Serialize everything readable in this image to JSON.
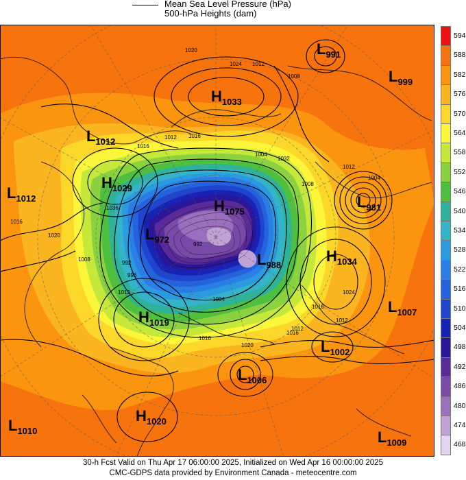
{
  "legend": {
    "line1": "Mean Sea Level Pressure (hPa)",
    "line2": "500-hPa Heights (dam)"
  },
  "footer": {
    "line1": "30-h Fcst Valid on Thu Apr 17 06:00:00 2025, Initialized on Wed Apr 16 00:00:00 2025",
    "line2": "CMC-GDPS data provided by Environment Canada - meteocentre.com"
  },
  "colorbar": {
    "levels": [
      "594",
      "588",
      "582",
      "576",
      "570",
      "564",
      "558",
      "552",
      "546",
      "540",
      "534",
      "528",
      "522",
      "516",
      "510",
      "504",
      "498",
      "492",
      "486",
      "480",
      "474",
      "468"
    ],
    "colors": [
      "#ee1111",
      "#f7730e",
      "#fb9510",
      "#fbb521",
      "#fbd72a",
      "#fbf63a",
      "#c5e83a",
      "#8ad240",
      "#4fbf3f",
      "#2eb39a",
      "#35b3c9",
      "#2b9be0",
      "#2a7fe6",
      "#2563dd",
      "#1f45cf",
      "#1823b5",
      "#2a1699",
      "#5a2a99",
      "#7a4aa8",
      "#9a6fbd",
      "#bfa3d4",
      "#e4d5ee"
    ]
  },
  "pressure_centers": [
    {
      "type": "L",
      "value": "991"
    },
    {
      "type": "L",
      "value": "999"
    },
    {
      "type": "H",
      "value": "1033"
    },
    {
      "type": "L",
      "value": "1012"
    },
    {
      "type": "H",
      "value": "1029"
    },
    {
      "type": "L",
      "value": "1012"
    },
    {
      "type": "H",
      "value": "1075"
    },
    {
      "type": "L",
      "value": "972"
    },
    {
      "type": "L",
      "value": "981"
    },
    {
      "type": "L",
      "value": "988"
    },
    {
      "type": "H",
      "value": "1034"
    },
    {
      "type": "L",
      "value": "1007"
    },
    {
      "type": "H",
      "value": "1019"
    },
    {
      "type": "L",
      "value": "1002"
    },
    {
      "type": "L",
      "value": "1006"
    },
    {
      "type": "H",
      "value": "1020"
    },
    {
      "type": "L",
      "value": "1010"
    },
    {
      "type": "L",
      "value": "1009"
    }
  ],
  "isobar_labels": [
    "1012",
    "1008",
    "1024",
    "1020",
    "1016",
    "1012",
    "1016",
    "1004",
    "1032",
    "1008",
    "1012",
    "1004",
    "1016",
    "1020",
    "1036",
    "996",
    "992",
    "1008",
    "1024",
    "992",
    "1012",
    "1004",
    "1016",
    "1012",
    "1016",
    "1012",
    "1020",
    "1016"
  ]
}
